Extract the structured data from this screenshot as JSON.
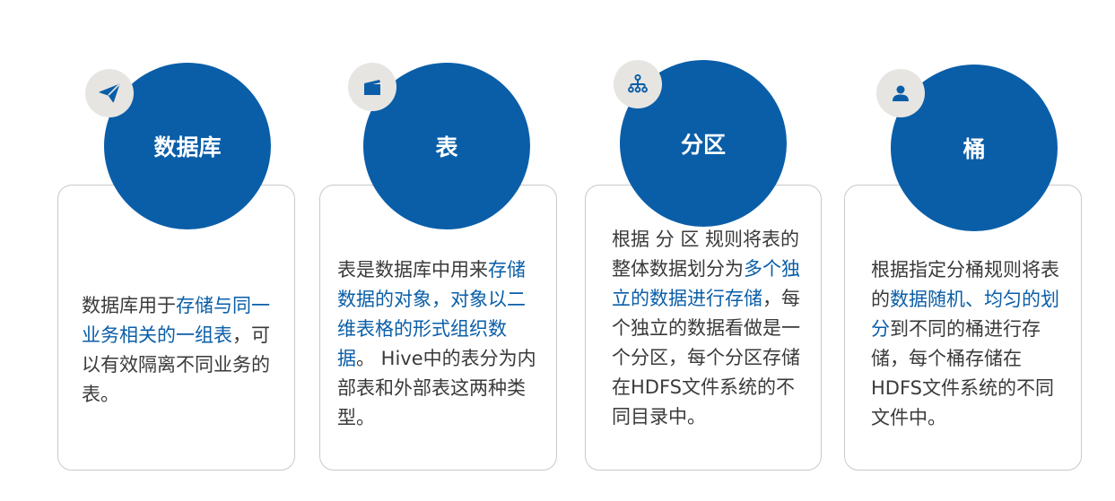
{
  "colors": {
    "accent": "#0a5ea8",
    "badge_bg": "#e7e5e1",
    "text": "#3a3a3a",
    "border": "#c9c9c9"
  },
  "cards": [
    {
      "title": "数据库",
      "icon": "paper-plane-icon",
      "desc": [
        {
          "text": "数据库用于",
          "hl": false
        },
        {
          "text": "存储与同一业务相关的一组表",
          "hl": true
        },
        {
          "text": "，可以有效隔离不同业务的表。",
          "hl": false
        }
      ]
    },
    {
      "title": "表",
      "icon": "clapperboard-icon",
      "desc": [
        {
          "text": "表是数据库中用来",
          "hl": false
        },
        {
          "text": "存储数据的对象，对象以二维表格的形式组织数据",
          "hl": true
        },
        {
          "text": "。 Hive中的表分为内部表和外部表这两种类型。",
          "hl": false
        }
      ]
    },
    {
      "title": "分区",
      "icon": "sitemap-icon",
      "desc": [
        {
          "text": "根据 分 区 规则将表的整体数据划分为",
          "hl": false
        },
        {
          "text": "多个独立的数据进行存储",
          "hl": true
        },
        {
          "text": "，每个独立的数据看做是一个分区，每个分区存储在HDFS文件系统的不同目录中。",
          "hl": false
        }
      ]
    },
    {
      "title": "桶",
      "icon": "user-icon",
      "desc": [
        {
          "text": "根据指定分桶规则将表的",
          "hl": false
        },
        {
          "text": "数据随机、均匀的划分",
          "hl": true
        },
        {
          "text": "到不同的桶进行存储，每个桶存储在HDFS文件系统的不同文件中。",
          "hl": false
        }
      ]
    }
  ]
}
